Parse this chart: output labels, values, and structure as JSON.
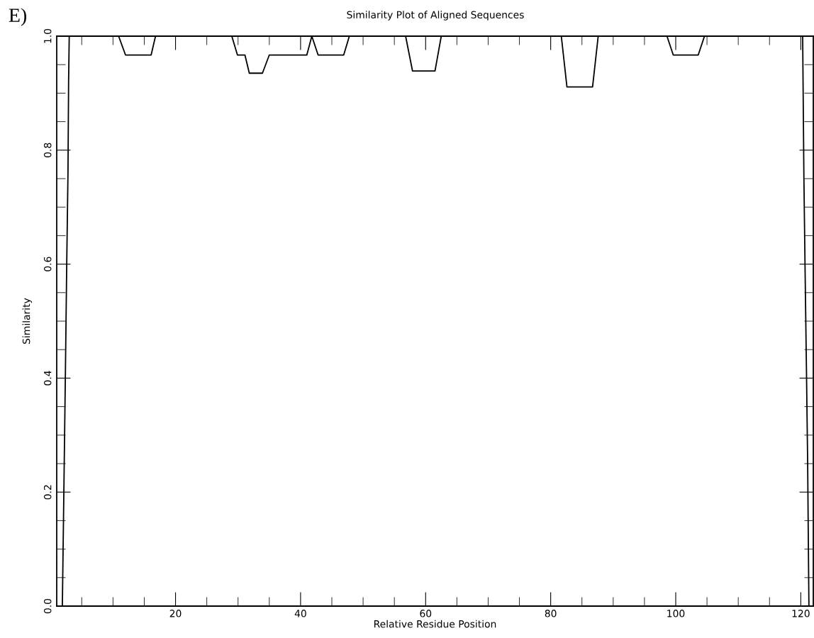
{
  "chart_data": {
    "type": "line",
    "title": "Similarity Plot of Aligned Sequences",
    "xlabel": "Relative Residue Position",
    "ylabel": "Similarity",
    "annotations": [
      "E)"
    ],
    "x": [
      1.9,
      2.2,
      2.4,
      2.6,
      2.8,
      2.9,
      3.0,
      10.9,
      12.0,
      16.1,
      16.8,
      29.0,
      29.9,
      31.1,
      31.8,
      33.9,
      35.0,
      41.0,
      41.8,
      42.8,
      46.9,
      47.8,
      56.8,
      57.9,
      61.5,
      62.5,
      81.7,
      82.6,
      86.7,
      87.6,
      98.6,
      99.6,
      103.6,
      104.6,
      120.3,
      120.5,
      120.7,
      120.9,
      121.1,
      121.3
    ],
    "series": [
      {
        "color": "#000000",
        "values": [
          0,
          0.25,
          0.42,
          0.6,
          0.76,
          0.92,
          1.0,
          1.0,
          0.967,
          0.967,
          1.0,
          1.0,
          0.967,
          0.967,
          0.935,
          0.935,
          0.967,
          0.967,
          1.0,
          0.967,
          0.967,
          1.0,
          1.0,
          0.939,
          0.939,
          1.0,
          1.0,
          0.911,
          0.911,
          1.0,
          1.0,
          0.967,
          0.967,
          1.0,
          1.0,
          0.75,
          0.58,
          0.42,
          0.25,
          0
        ]
      }
    ],
    "xlim": [
      1,
      122
    ],
    "ylim": [
      0,
      1
    ],
    "xticks": [
      {
        "value": 5,
        "label": null
      },
      {
        "value": 10,
        "label": null
      },
      {
        "value": 15,
        "label": null
      },
      20,
      {
        "value": 25,
        "label": null
      },
      {
        "value": 30,
        "label": null
      },
      {
        "value": 35,
        "label": null
      },
      40,
      {
        "value": 45,
        "label": null
      },
      {
        "value": 50,
        "label": null
      },
      {
        "value": 55,
        "label": null
      },
      60,
      {
        "value": 65,
        "label": null
      },
      {
        "value": 70,
        "label": null
      },
      {
        "value": 75,
        "label": null
      },
      80,
      {
        "value": 85,
        "label": null
      },
      {
        "value": 90,
        "label": null
      },
      {
        "value": 95,
        "label": null
      },
      100,
      {
        "value": 105,
        "label": null
      },
      {
        "value": 110,
        "label": null
      },
      {
        "value": 115,
        "label": null
      },
      120
    ],
    "yticks": [
      {
        "value": 0,
        "label": "0.0"
      },
      {
        "value": 0.05,
        "label": null
      },
      {
        "value": 0.1,
        "label": null
      },
      {
        "value": 0.15,
        "label": null
      },
      {
        "value": 0.2,
        "label": "0.2"
      },
      {
        "value": 0.25,
        "label": null
      },
      {
        "value": 0.3,
        "label": null
      },
      {
        "value": 0.35,
        "label": null
      },
      {
        "value": 0.4,
        "label": "0.4"
      },
      {
        "value": 0.45,
        "label": null
      },
      {
        "value": 0.5,
        "label": null
      },
      {
        "value": 0.55,
        "label": null
      },
      {
        "value": 0.6,
        "label": "0.6"
      },
      {
        "value": 0.65,
        "label": null
      },
      {
        "value": 0.7,
        "label": null
      },
      {
        "value": 0.75,
        "label": null
      },
      {
        "value": 0.8,
        "label": "0.8"
      },
      {
        "value": 0.85,
        "label": null
      },
      {
        "value": 0.9,
        "label": null
      },
      {
        "value": 0.95,
        "label": null
      },
      {
        "value": 1.0,
        "label": "1.0"
      }
    ],
    "grid": false,
    "legend": false,
    "marker": "none",
    "line_style": "solid"
  }
}
